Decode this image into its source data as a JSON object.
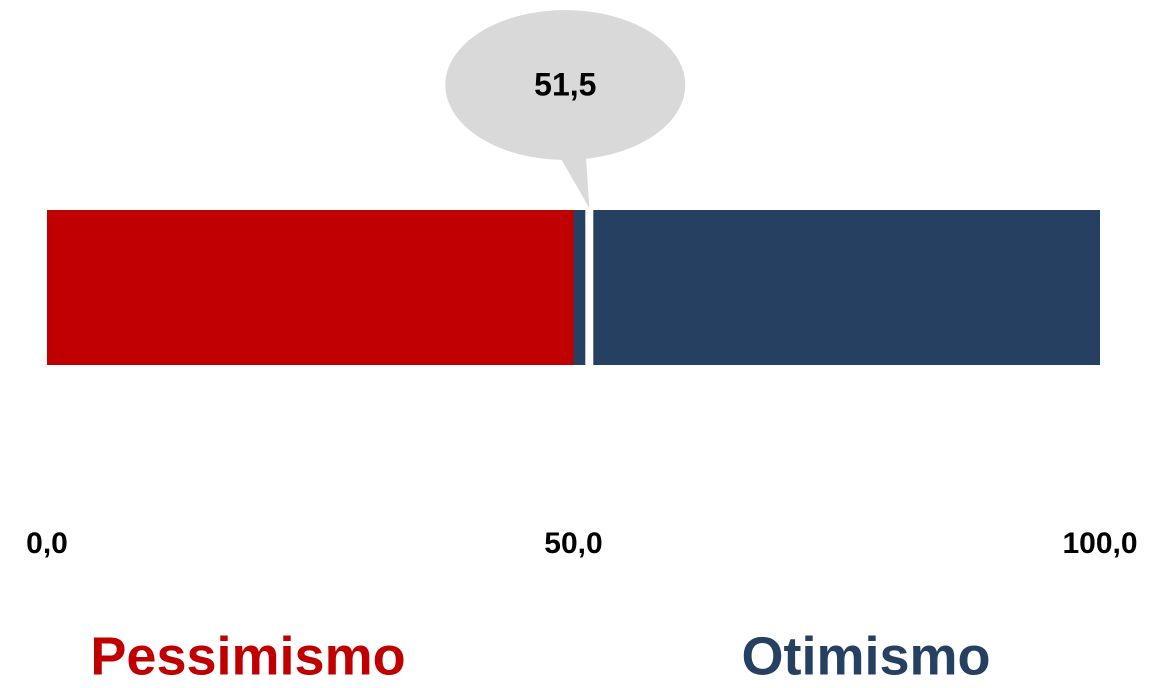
{
  "chart_data": {
    "type": "gauge",
    "series": [
      {
        "name": "Pessimismo",
        "color": "#c00000",
        "values": [
          50
        ]
      },
      {
        "name": "Otimismo",
        "color": "#264061",
        "values": [
          50
        ]
      }
    ],
    "values": [
      51.5
    ],
    "value_labels": [
      "51,5"
    ],
    "xlim": [
      0,
      100
    ],
    "xticks": [
      {
        "value": 0,
        "label": "0,0"
      },
      {
        "value": 50,
        "label": "50,0"
      },
      {
        "value": 100,
        "label": "100,0"
      }
    ]
  }
}
